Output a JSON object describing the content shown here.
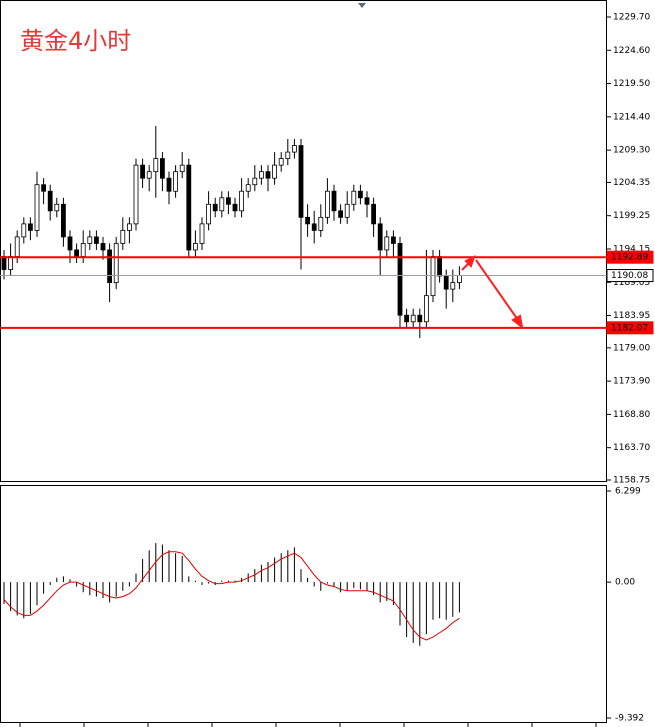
{
  "chart_data": [
    {
      "type": "candlestick",
      "title": "黄金4小时",
      "ylim": [
        1158.75,
        1229.7
      ],
      "yticks": [
        {
          "value": 1229.7,
          "label": "1229.70"
        },
        {
          "value": 1224.6,
          "label": "1224.60"
        },
        {
          "value": 1219.5,
          "label": "1219.50"
        },
        {
          "value": 1214.4,
          "label": "1214.40"
        },
        {
          "value": 1209.3,
          "label": "1209.30"
        },
        1204.35,
        1199.25,
        1194.15,
        1189.05,
        1183.95,
        {
          "value": 1179,
          "label": "1179.00"
        },
        {
          "value": 1173.9,
          "label": "1173.90"
        },
        {
          "value": 1168.8,
          "label": "1168.80"
        },
        {
          "value": 1163.7,
          "label": "1163.70"
        },
        1158.75
      ],
      "levels": [
        {
          "value": 1192.89,
          "color": "#ff0000"
        },
        {
          "value": 1182.07,
          "color": "#ff0000"
        },
        {
          "value": 1190.08,
          "color": "#9e9e9e"
        }
      ],
      "open": [
        1193,
        1191,
        1193,
        1196,
        1198,
        1197,
        1204,
        1203,
        1200,
        1201,
        1196,
        1194,
        1193,
        1195,
        1196,
        1195,
        1194,
        1189,
        1195,
        1197,
        1198,
        1207,
        1205,
        1206,
        1208,
        1205,
        1203,
        1206,
        1207,
        1194,
        1195,
        1198,
        1201,
        1200,
        1202,
        1201,
        1200,
        1203,
        1204,
        1205,
        1206,
        1205,
        1207,
        1208,
        1209,
        1210,
        1199,
        1198,
        1197,
        1199,
        1203,
        1200,
        1199,
        1201,
        1203,
        1202,
        1201,
        1198,
        1194,
        1196,
        1195,
        1184,
        1183,
        1184,
        1183,
        1187,
        1193,
        1190,
        1188,
        1189
      ],
      "high": [
        1194,
        1195,
        1197,
        1199,
        1199,
        1206,
        1205,
        1204,
        1202,
        1202,
        1197,
        1195,
        1197,
        1197,
        1197,
        1196,
        1195,
        1196,
        1199,
        1199,
        1208,
        1208,
        1207,
        1213,
        1209,
        1206,
        1207,
        1209,
        1208,
        1197,
        1199,
        1203,
        1202,
        1203,
        1203,
        1202,
        1205,
        1205,
        1207,
        1207,
        1207,
        1209,
        1209,
        1211,
        1211,
        1211,
        1201,
        1200,
        1201,
        1205,
        1204,
        1201,
        1203,
        1204,
        1204,
        1203,
        1202,
        1199,
        1197,
        1197,
        1196,
        1185,
        1185,
        1185,
        1194,
        1194,
        1194,
        1191,
        1191,
        1191.5
      ],
      "low": [
        1189.5,
        1190,
        1192,
        1195,
        1195.5,
        1196,
        1201,
        1198.5,
        1199,
        1194.5,
        1192,
        1192,
        1192,
        1194,
        1194,
        1192.5,
        1186,
        1188,
        1194,
        1195,
        1197,
        1203.5,
        1203,
        1202,
        1203,
        1201,
        1202,
        1205,
        1193,
        1193,
        1194,
        1197,
        1199,
        1199,
        1199.5,
        1199,
        1199,
        1202,
        1203,
        1204,
        1203,
        1204,
        1206,
        1207,
        1208,
        1191,
        1196,
        1195,
        1196,
        1198,
        1198.5,
        1198,
        1198,
        1200,
        1201,
        1199,
        1196,
        1190,
        1193,
        1193,
        1182,
        1182,
        1182,
        1180.5,
        1182,
        1186,
        1189,
        1185,
        1186,
        1188
      ],
      "close": [
        1191,
        1193,
        1196,
        1198,
        1197,
        1204,
        1203,
        1200,
        1201,
        1196,
        1194,
        1193,
        1195,
        1196,
        1195,
        1194,
        1189,
        1195,
        1197,
        1198,
        1207,
        1205,
        1206,
        1208,
        1205,
        1203,
        1206,
        1207,
        1194,
        1195,
        1198,
        1201,
        1200,
        1202,
        1201,
        1200,
        1203,
        1204,
        1205,
        1206,
        1205,
        1207,
        1208,
        1209,
        1210,
        1199,
        1198,
        1197,
        1199,
        1203,
        1200,
        1199,
        1201,
        1203,
        1202,
        1201,
        1198,
        1194,
        1196,
        1195,
        1184,
        1183,
        1184,
        1183,
        1187,
        1193,
        1190,
        1188,
        1189,
        1190.08
      ]
    },
    {
      "type": "macd",
      "ylim": [
        -9.392,
        6.299
      ],
      "yticks": [
        6.299,
        {
          "value": 0,
          "label": "0.00"
        },
        -9.392
      ],
      "signal_color": "#e00000",
      "histogram": [
        -1.5,
        -2.0,
        -2.3,
        -2.5,
        -2.2,
        -1.6,
        -0.8,
        -0.2,
        0.3,
        0.4,
        0.2,
        -0.3,
        -0.7,
        -0.9,
        -1.0,
        -1.1,
        -1.4,
        -1.0,
        -0.6,
        -0.3,
        0.6,
        1.6,
        2.2,
        2.7,
        2.6,
        2.2,
        2.0,
        1.8,
        0.4,
        0.1,
        -0.2,
        -0.1,
        -0.2,
        0.1,
        0.1,
        0.1,
        0.3,
        0.6,
        0.9,
        1.2,
        1.4,
        1.7,
        2.0,
        2.2,
        2.4,
        0.9,
        0.3,
        -0.3,
        -0.6,
        -0.1,
        -0.3,
        -0.7,
        -0.6,
        -0.4,
        -0.5,
        -0.6,
        -0.9,
        -1.4,
        -1.3,
        -1.6,
        -3.0,
        -3.8,
        -4.2,
        -4.4,
        -3.6,
        -2.6,
        -2.5,
        -2.6,
        -2.4,
        -2.1
      ],
      "signal": [
        -1.2,
        -1.7,
        -2.1,
        -2.3,
        -2.3,
        -2.0,
        -1.6,
        -1.1,
        -0.6,
        -0.2,
        0.0,
        0.0,
        -0.2,
        -0.4,
        -0.6,
        -0.8,
        -1.0,
        -1.1,
        -1.0,
        -0.8,
        -0.4,
        0.2,
        0.8,
        1.4,
        1.9,
        2.1,
        2.1,
        2.0,
        1.5,
        0.9,
        0.4,
        0.1,
        -0.1,
        -0.1,
        0.0,
        0.0,
        0.1,
        0.3,
        0.5,
        0.8,
        1.0,
        1.3,
        1.6,
        1.8,
        2.0,
        1.7,
        1.1,
        0.5,
        0.0,
        -0.2,
        -0.3,
        -0.5,
        -0.6,
        -0.6,
        -0.6,
        -0.6,
        -0.7,
        -0.9,
        -1.1,
        -1.3,
        -1.9,
        -2.6,
        -3.3,
        -3.8,
        -4.0,
        -3.8,
        -3.5,
        -3.2,
        -2.8,
        -2.5
      ]
    }
  ]
}
